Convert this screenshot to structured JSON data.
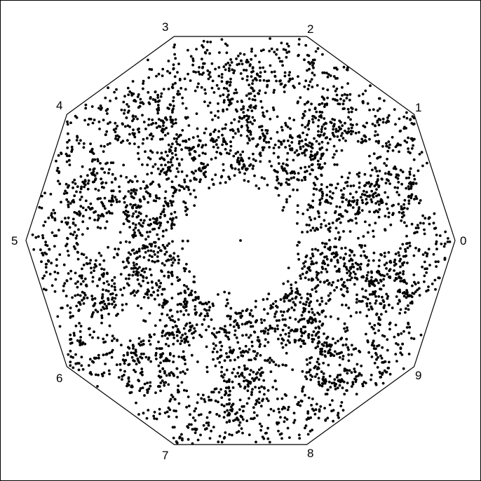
{
  "diagram": {
    "vertex_labels": [
      "0",
      "1",
      "2",
      "3",
      "4",
      "5",
      "6",
      "7",
      "8",
      "9"
    ],
    "stroke_color": "#000000",
    "point_color": "#000000",
    "background_color": "#ffffff"
  }
}
